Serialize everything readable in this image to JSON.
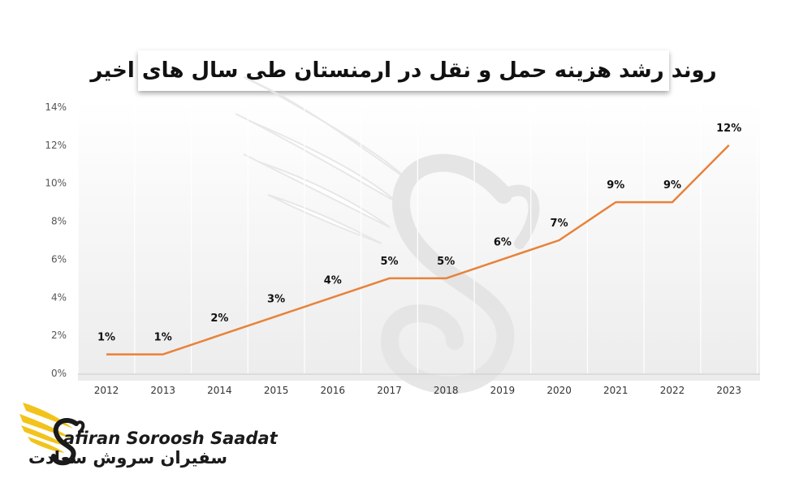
{
  "chart_data": {
    "type": "line",
    "title": "روند رشد هزینه حمل و نقل در ارمنستان طی سال های اخیر",
    "categories": [
      "2012",
      "2013",
      "2014",
      "2015",
      "2016",
      "2017",
      "2018",
      "2019",
      "2020",
      "2021",
      "2022",
      "2023"
    ],
    "values": [
      1,
      1,
      2,
      3,
      4,
      5,
      5,
      6,
      7,
      9,
      9,
      12
    ],
    "data_labels": [
      "1%",
      "1%",
      "2%",
      "3%",
      "4%",
      "5%",
      "5%",
      "6%",
      "7%",
      "9%",
      "9%",
      "12%"
    ],
    "y_ticks": [
      "0%",
      "2%",
      "4%",
      "6%",
      "8%",
      "10%",
      "12%",
      "14%"
    ],
    "ylim": [
      0,
      14
    ],
    "xlabel": "",
    "ylabel": "",
    "grid": "vertical",
    "line_color": "#E8823A",
    "plot_background": "#F2F2F2"
  },
  "logo": {
    "text_en": "afiran Soroosh Saadat",
    "text_fa": "سفیران سروش سعادت",
    "accent_color": "#F2C31B"
  }
}
